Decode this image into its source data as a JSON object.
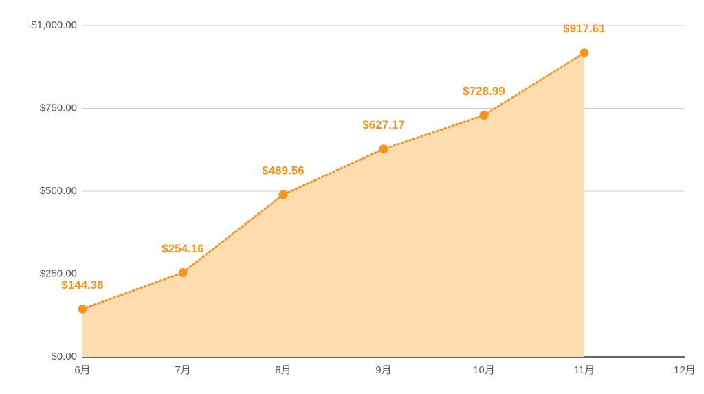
{
  "chart_data": {
    "type": "area",
    "categories": [
      "6月",
      "7月",
      "8月",
      "9月",
      "10月",
      "11月",
      "12月"
    ],
    "series": [
      {
        "color": "#f7941d",
        "fill": "#fddcb0",
        "values": [
          144.38,
          254.16,
          489.56,
          627.17,
          728.99,
          917.61,
          null
        ],
        "value_labels": [
          "$144.38",
          "$254.16",
          "$489.56",
          "$627.17",
          "$728.99",
          "$917.61",
          null
        ]
      }
    ],
    "ylim": [
      0,
      1000
    ],
    "yticks": [
      {
        "value": 0,
        "label": "$0.00"
      },
      {
        "value": 250,
        "label": "$250.00"
      },
      {
        "value": 500,
        "label": "$500.00"
      },
      {
        "value": 750,
        "label": "$750.00"
      },
      {
        "value": 1000,
        "label": "$1,000.00"
      }
    ],
    "grid": true
  }
}
